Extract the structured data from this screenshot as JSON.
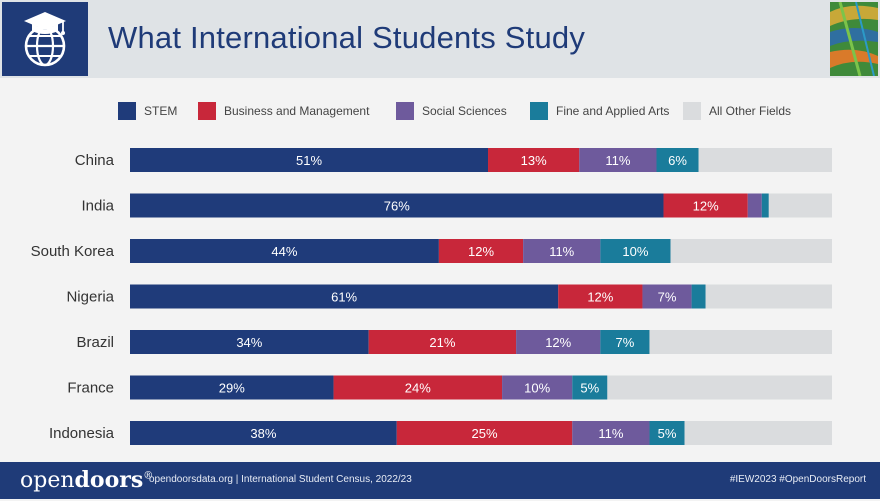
{
  "header": {
    "title": "What International Students Study",
    "logo_icon": "graduation-globe-icon"
  },
  "colors": {
    "stem": "#1f3b7a",
    "business": "#c8273a",
    "social": "#6e5a9c",
    "arts": "#1a7c9b",
    "other": "#dadcde",
    "navy": "#1f3b78"
  },
  "chart_data": {
    "type": "bar",
    "orientation": "horizontal",
    "stacked": true,
    "title": "What International Students Study",
    "categories": [
      "China",
      "India",
      "South Korea",
      "Nigeria",
      "Brazil",
      "France",
      "Indonesia"
    ],
    "series": [
      {
        "name": "STEM",
        "color": "#1f3b7a",
        "values": [
          51,
          76,
          44,
          61,
          34,
          29,
          38
        ],
        "labels": [
          "51%",
          "76%",
          "44%",
          "61%",
          "34%",
          "29%",
          "38%"
        ]
      },
      {
        "name": "Business and Management",
        "color": "#c8273a",
        "values": [
          13,
          12,
          12,
          12,
          21,
          24,
          25
        ],
        "labels": [
          "13%",
          "12%",
          "12%",
          "12%",
          "21%",
          "24%",
          "25%"
        ]
      },
      {
        "name": "Social Sciences",
        "color": "#6e5a9c",
        "values": [
          11,
          2,
          11,
          7,
          12,
          10,
          11
        ],
        "labels": [
          "11%",
          "",
          "11%",
          "7%",
          "12%",
          "10%",
          "11%"
        ]
      },
      {
        "name": "Fine and Applied Arts",
        "color": "#1a7c9b",
        "values": [
          6,
          1,
          10,
          2,
          7,
          5,
          5
        ],
        "labels": [
          "6%",
          "",
          "10%",
          "",
          "7%",
          "5%",
          "5%"
        ]
      },
      {
        "name": "All Other Fields",
        "color": "#dadcde",
        "values": [
          19,
          9,
          23,
          18,
          26,
          32,
          21
        ],
        "labels": [
          "",
          "",
          "",
          "",
          "",
          "",
          ""
        ]
      }
    ],
    "xlim": [
      0,
      100
    ],
    "legend_position": "top"
  },
  "footer": {
    "brand_part1": "open",
    "brand_part2": "doors",
    "brand_mark": "®",
    "source": "opendoorsdata.org  |  International Student Census, 2022/23",
    "tags": "#IEW2023  #OpenDoorsReport"
  }
}
